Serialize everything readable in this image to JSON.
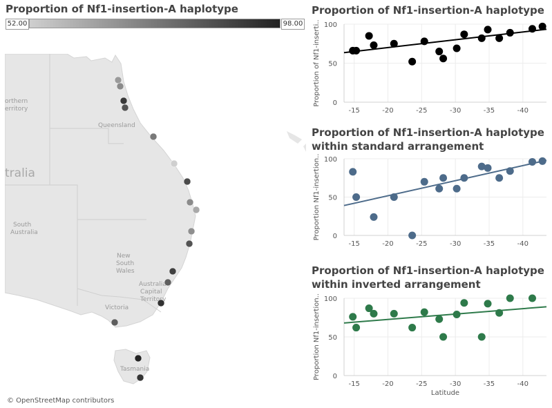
{
  "map": {
    "title": "Proportion of Nf1-insertion-A haplotype",
    "legend": {
      "min_label": "52.00",
      "max_label": "98.00",
      "min_color": "#cfcfcf",
      "max_color": "#222222"
    },
    "attribution": "© OpenStreetMap contributors",
    "region_labels": {
      "northern_territory": [
        "orthern",
        "erritory"
      ],
      "queensland": "Queensland",
      "australia": "tralia",
      "south_australia": [
        "South",
        "Australia"
      ],
      "nsw": [
        "New",
        "South",
        "Wales"
      ],
      "act": [
        "Australia",
        "Capital",
        "Territory"
      ],
      "victoria": "Victoria",
      "tasmania": "Tasmania"
    }
  },
  "chart_data": [
    {
      "type": "scatter",
      "title": "Proportion of Nf1-insertion-A haplotype",
      "ylabel": "Proportion of Nf1-inserti..",
      "xlabel": "",
      "color": "#000000",
      "xlim": [
        -13.5,
        -43.5
      ],
      "ylim": [
        0,
        100
      ],
      "xticks": [
        -15,
        -20,
        -25,
        -30,
        -35,
        -40
      ],
      "yticks": [
        0,
        50,
        100
      ],
      "trend": [
        [
          -13.5,
          63.5
        ],
        [
          -43.5,
          93.5
        ]
      ],
      "trend_color": "#000000",
      "points": [
        [
          -14.8,
          66
        ],
        [
          -15.3,
          66
        ],
        [
          -17.2,
          85
        ],
        [
          -17.9,
          73
        ],
        [
          -20.9,
          75
        ],
        [
          -23.6,
          52
        ],
        [
          -25.4,
          78
        ],
        [
          -27.6,
          65
        ],
        [
          -28.2,
          56
        ],
        [
          -30.2,
          69
        ],
        [
          -31.3,
          87
        ],
        [
          -33.9,
          82
        ],
        [
          -34.8,
          93
        ],
        [
          -36.5,
          82
        ],
        [
          -38.1,
          89
        ],
        [
          -41.4,
          94
        ],
        [
          -42.9,
          97
        ]
      ]
    },
    {
      "type": "scatter",
      "title": "Proportion of Nf1-insertion-A haplotype within standard arrangement",
      "title_lines": [
        "Proportion of Nf1-insertion-A haplotype",
        "within standard arrangement"
      ],
      "ylabel": "Proportion Nf1-insertion..",
      "xlabel": "",
      "color": "#4d6b8a",
      "xlim": [
        -13.5,
        -43.5
      ],
      "ylim": [
        0,
        100
      ],
      "xticks": [
        -15,
        -20,
        -25,
        -30,
        -35,
        -40
      ],
      "yticks": [
        0,
        50,
        100
      ],
      "trend": [
        [
          -13.5,
          39
        ],
        [
          -43.5,
          98
        ]
      ],
      "trend_color": "#4d6b8a",
      "points": [
        [
          -14.8,
          83
        ],
        [
          -15.3,
          50
        ],
        [
          -17.9,
          24
        ],
        [
          -20.9,
          50
        ],
        [
          -23.6,
          0
        ],
        [
          -25.4,
          70
        ],
        [
          -27.6,
          61
        ],
        [
          -28.2,
          75
        ],
        [
          -30.2,
          61
        ],
        [
          -31.3,
          75
        ],
        [
          -33.9,
          90
        ],
        [
          -34.8,
          88
        ],
        [
          -36.5,
          75
        ],
        [
          -38.1,
          84
        ],
        [
          -41.4,
          96
        ],
        [
          -42.9,
          97
        ]
      ]
    },
    {
      "type": "scatter",
      "title": "Proportion of Nf1-insertion-A haplotype within inverted arrangement",
      "title_lines": [
        "Proportion of Nf1-insertion-A haplotype",
        "within inverted arrangement"
      ],
      "ylabel": "Proportion Nf1-insertion..",
      "xlabel": "Latitude",
      "color": "#2e7a4a",
      "xlim": [
        -13.5,
        -43.5
      ],
      "ylim": [
        0,
        100
      ],
      "xticks": [
        -15,
        -20,
        -25,
        -30,
        -35,
        -40
      ],
      "yticks": [
        0,
        50,
        100
      ],
      "trend": [
        [
          -13.5,
          68
        ],
        [
          -43.5,
          89
        ]
      ],
      "trend_color": "#2e7a4a",
      "points": [
        [
          -14.8,
          76
        ],
        [
          -15.3,
          62
        ],
        [
          -17.2,
          87
        ],
        [
          -17.9,
          80
        ],
        [
          -20.9,
          80
        ],
        [
          -23.6,
          62
        ],
        [
          -25.4,
          82
        ],
        [
          -27.6,
          73
        ],
        [
          -28.2,
          50
        ],
        [
          -30.2,
          79
        ],
        [
          -31.3,
          94
        ],
        [
          -33.9,
          50
        ],
        [
          -34.8,
          93
        ],
        [
          -36.5,
          81
        ],
        [
          -38.1,
          100
        ],
        [
          -41.4,
          100
        ]
      ]
    }
  ],
  "map_sites": [
    {
      "v": 66
    },
    {
      "v": 70
    },
    {
      "v": 92
    },
    {
      "v": 85
    },
    {
      "v": 75
    },
    {
      "v": 52
    },
    {
      "v": 87
    },
    {
      "v": 70
    },
    {
      "v": 62
    },
    {
      "v": 69
    },
    {
      "v": 85
    },
    {
      "v": 90
    },
    {
      "v": 82
    },
    {
      "v": 94
    },
    {
      "v": 82
    },
    {
      "v": 97
    },
    {
      "v": 93
    }
  ]
}
